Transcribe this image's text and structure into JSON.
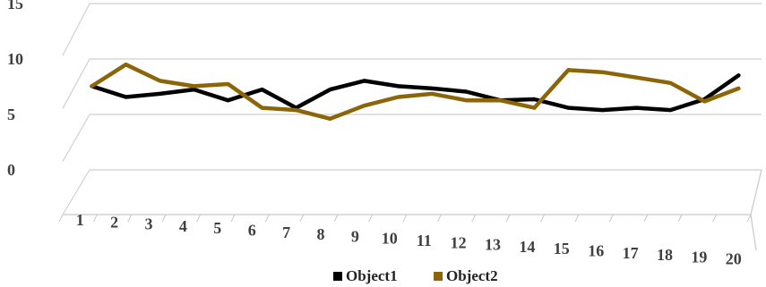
{
  "chart_data": {
    "type": "line",
    "x": [
      "1",
      "2",
      "3",
      "4",
      "5",
      "6",
      "7",
      "8",
      "9",
      "10",
      "11",
      "12",
      "13",
      "14",
      "15",
      "16",
      "17",
      "18",
      "19",
      "20"
    ],
    "ylim": [
      0,
      15
    ],
    "yticks": [
      "0",
      "5",
      "10",
      "15"
    ],
    "grid": true,
    "legend": "bottom",
    "series": [
      {
        "name": "Object1",
        "color": "#000000",
        "values": [
          10,
          9,
          9.3,
          9.7,
          8.7,
          9.7,
          8,
          9.7,
          10.5,
          10,
          9.8,
          9.5,
          8.7,
          8.8,
          8,
          7.8,
          8,
          7.8,
          8.8,
          11
        ]
      },
      {
        "name": "Object2",
        "color": "#8b6508",
        "values": [
          10,
          12,
          10.5,
          10,
          10.2,
          8,
          7.8,
          7,
          8.2,
          9,
          9.3,
          8.7,
          8.7,
          8,
          11.5,
          11.3,
          10.8,
          10.3,
          8.6,
          9.8
        ]
      }
    ]
  }
}
